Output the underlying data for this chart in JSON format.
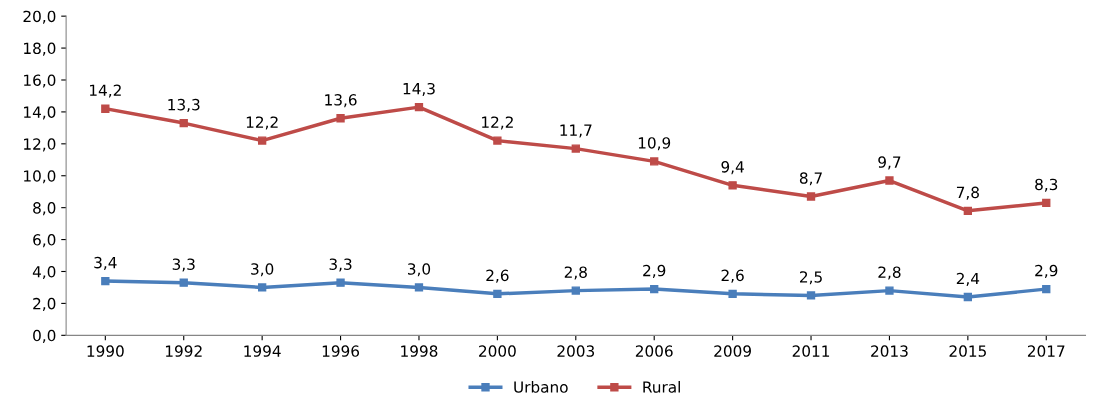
{
  "chart_data": {
    "type": "line",
    "categories": [
      "1990",
      "1992",
      "1994",
      "1996",
      "1998",
      "2000",
      "2003",
      "2006",
      "2009",
      "2011",
      "2013",
      "2015",
      "2017"
    ],
    "series": [
      {
        "name": "Urbano",
        "color": "#4a7ebb",
        "values": [
          3.4,
          3.3,
          3.0,
          3.3,
          3.0,
          2.6,
          2.8,
          2.9,
          2.6,
          2.5,
          2.8,
          2.4,
          2.9
        ],
        "value_labels": [
          "3,4",
          "3,3",
          "3,0",
          "3,3",
          "3,0",
          "2,6",
          "2,8",
          "2,9",
          "2,6",
          "2,5",
          "2,8",
          "2,4",
          "2,9"
        ]
      },
      {
        "name": "Rural",
        "color": "#be4b48",
        "values": [
          14.2,
          13.3,
          12.2,
          13.6,
          14.3,
          12.2,
          11.7,
          10.9,
          9.4,
          8.7,
          9.7,
          7.8,
          8.3
        ],
        "value_labels": [
          "14,2",
          "13,3",
          "12,2",
          "13,6",
          "14,3",
          "12,2",
          "11,7",
          "10,9",
          "9,4",
          "8,7",
          "9,7",
          "7,8",
          "8,3"
        ]
      }
    ],
    "ylim": [
      0,
      20
    ],
    "yticks": [
      {
        "value": 0,
        "label": "0,0"
      },
      {
        "value": 2,
        "label": "2,0"
      },
      {
        "value": 4,
        "label": "4,0"
      },
      {
        "value": 6,
        "label": "6,0"
      },
      {
        "value": 8,
        "label": "8,0"
      },
      {
        "value": 10,
        "label": "10,0"
      },
      {
        "value": 12,
        "label": "12,0"
      },
      {
        "value": 14,
        "label": "14,0"
      },
      {
        "value": 16,
        "label": "16,0"
      },
      {
        "value": 18,
        "label": "18,0"
      },
      {
        "value": 20,
        "label": "20,0"
      }
    ],
    "marker": "square",
    "line_style": "solid",
    "legend": "bottom",
    "grid": false
  }
}
